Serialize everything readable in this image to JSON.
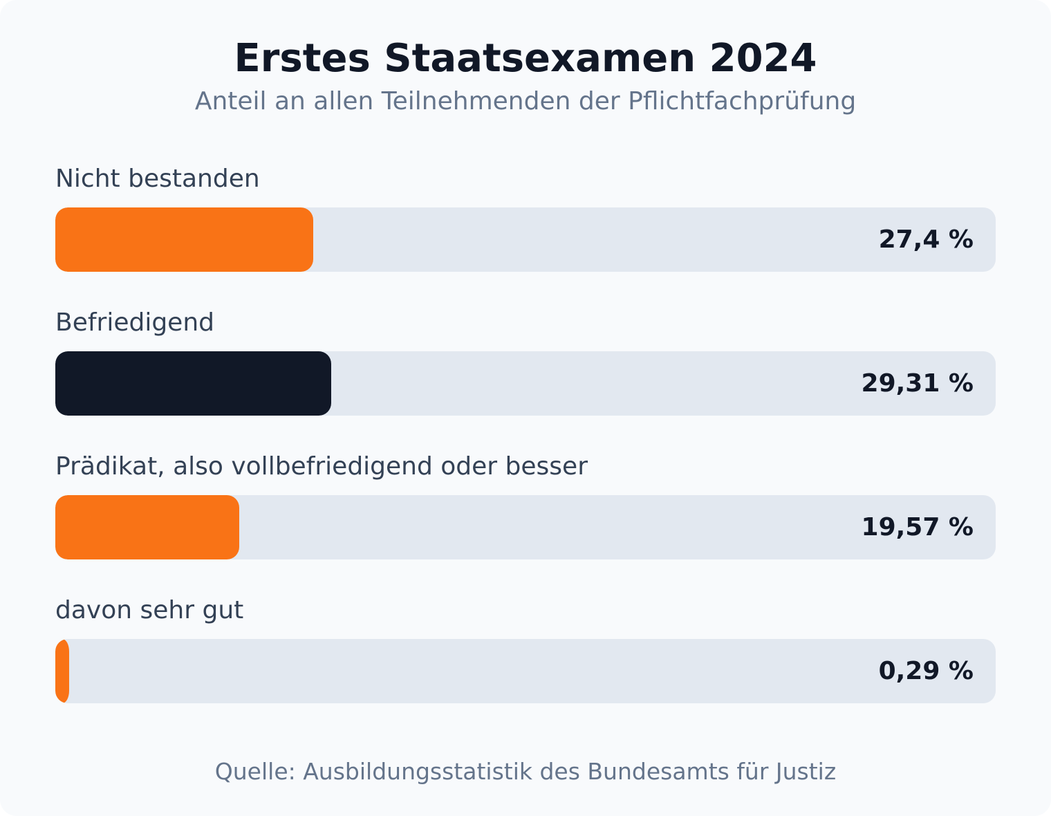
{
  "colors": {
    "card_background": "#f8fafc",
    "track": "#e2e8f0",
    "accent_orange": "#f97316",
    "accent_dark": "#111827",
    "title": "#111827",
    "muted": "#64748b",
    "label": "#334155"
  },
  "header": {
    "title": "Erstes Staatsexamen 2024",
    "subtitle": "Anteil an allen Teilnehmenden der Pflichtfachprüfung"
  },
  "chart_data": {
    "type": "bar",
    "orientation": "horizontal",
    "title": "Erstes Staatsexamen 2024",
    "subtitle": "Anteil an allen Teilnehmenden der Pflichtfachprüfung",
    "unit": "%",
    "xlim": [
      0,
      100
    ],
    "grid": false,
    "categories": [
      "Nicht bestanden",
      "Befriedigend",
      "Prädikat, also vollbefriedigend oder besser",
      "davon sehr gut"
    ],
    "values": [
      27.4,
      29.31,
      19.57,
      0.29
    ],
    "value_labels": [
      "27,4 %",
      "29,31 %",
      "19,57 %",
      "0,29 %"
    ],
    "bar_colors": [
      "#f97316",
      "#111827",
      "#f97316",
      "#f97316"
    ]
  },
  "footer": {
    "source": "Quelle: Ausbildungsstatistik des Bundesamts für Justiz"
  }
}
